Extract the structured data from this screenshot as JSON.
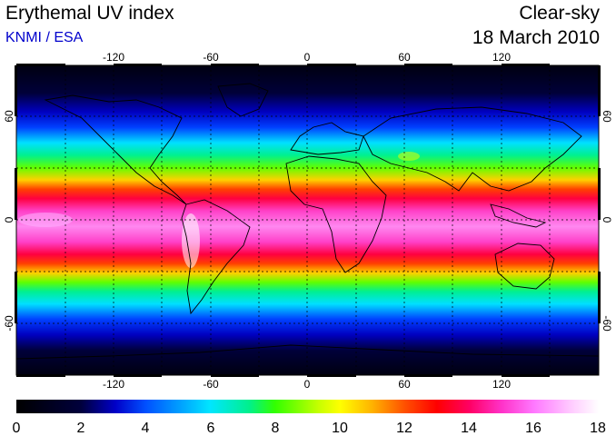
{
  "header": {
    "title": "Erythemal UV index",
    "credit": "KNMI / ESA",
    "sky_condition": "Clear-sky",
    "date": "18 March 2010"
  },
  "colors": {
    "credit_text": "#0000cc",
    "colorbar_stops": [
      "#000000",
      "#00003c",
      "#0000c8",
      "#0050ff",
      "#00e6ff",
      "#00f08c",
      "#32ff00",
      "#c8ff00",
      "#ffff00",
      "#ffb400",
      "#ff5000",
      "#ff0000",
      "#ff0064",
      "#ff32c8",
      "#ff78ff",
      "#ffc8ff",
      "#ffffff"
    ]
  },
  "map": {
    "projection": "equirectangular",
    "lon_ticks": [
      "-120",
      "-60",
      "0",
      "60",
      "120"
    ],
    "lat_ticks": [
      "60",
      "0",
      "-60"
    ],
    "grid": "dashed every 30 degrees"
  },
  "colorbar": {
    "labels": [
      "0",
      "2",
      "4",
      "6",
      "8",
      "10",
      "12",
      "14",
      "16",
      "18"
    ],
    "min": 0,
    "max": 18
  }
}
